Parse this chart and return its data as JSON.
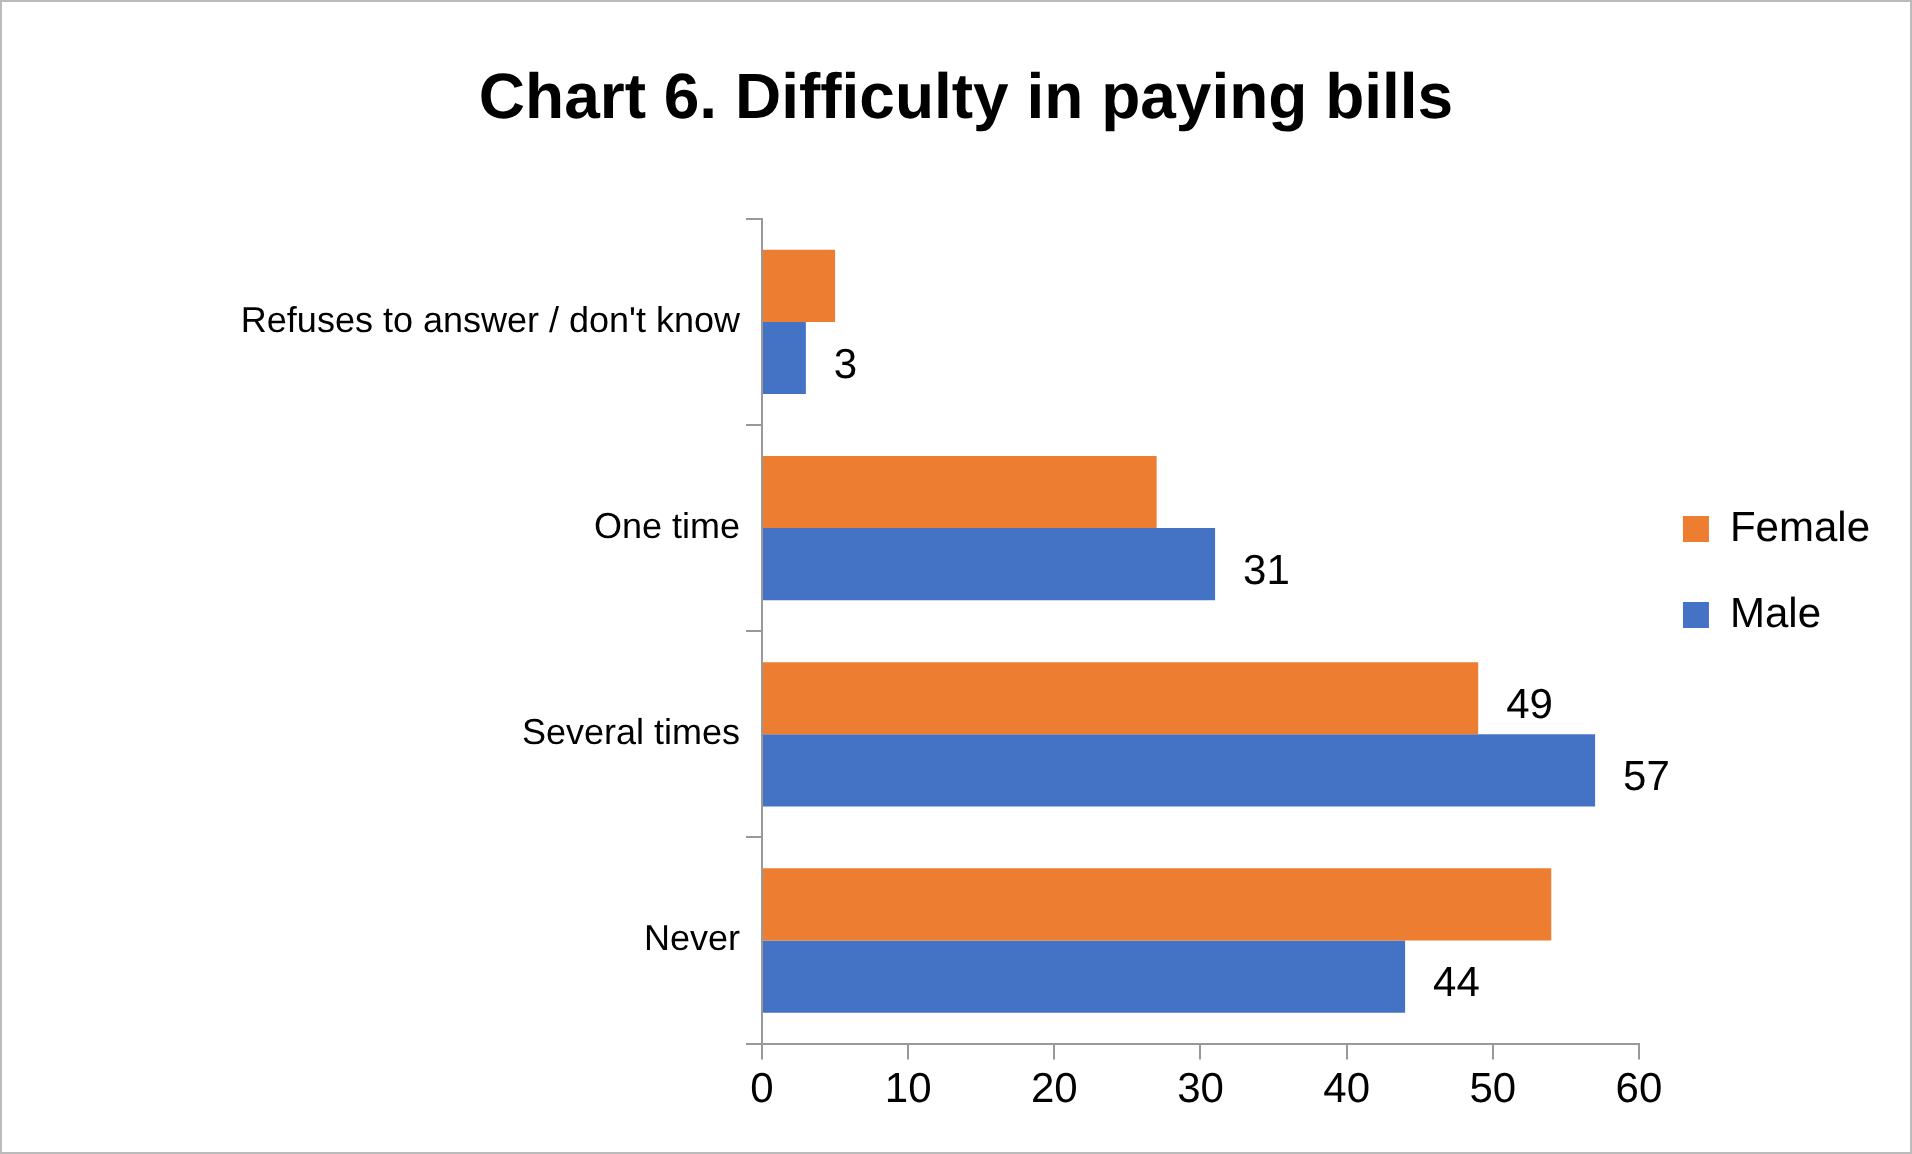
{
  "chart_data": {
    "type": "bar",
    "orientation": "horizontal",
    "title": "Chart 6. Difficulty in paying bills",
    "categories": [
      "Refuses to answer / don't know",
      "One time",
      "Several times",
      "Never"
    ],
    "series": [
      {
        "name": "Female",
        "color": "#ed7d31",
        "values": [
          5,
          27,
          49,
          54
        ],
        "value_labels": [
          null,
          null,
          "49",
          null
        ]
      },
      {
        "name": "Male",
        "color": "#4472c4",
        "values": [
          3,
          31,
          57,
          44
        ],
        "value_labels": [
          "3",
          "31",
          "57",
          "44"
        ]
      }
    ],
    "xlim": [
      0,
      60
    ],
    "xticks": [
      0,
      10,
      20,
      30,
      40,
      50,
      60
    ],
    "grid": false,
    "legend": "right"
  }
}
